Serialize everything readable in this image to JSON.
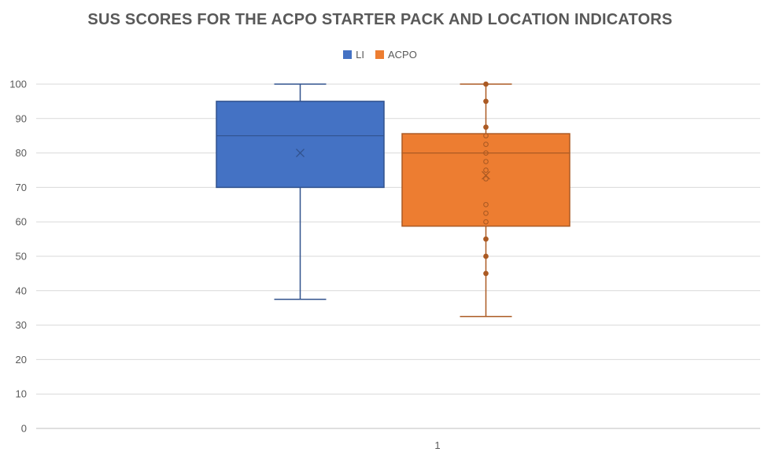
{
  "chart_data": {
    "type": "boxplot",
    "title": "SUS SCORES FOR THE ACPO STARTER PACK AND LOCATION INDICATORS",
    "categories": [
      "1"
    ],
    "ylim": [
      0,
      100
    ],
    "yticks": [
      0,
      10,
      20,
      30,
      40,
      50,
      60,
      70,
      80,
      90,
      100
    ],
    "grid": true,
    "legend_position": "top",
    "series": [
      {
        "name": "LI",
        "color": "#4472C4",
        "min": 37.5,
        "q1": 70,
        "median": 85,
        "q3": 95,
        "max": 100,
        "mean": 80,
        "points": []
      },
      {
        "name": "ACPO",
        "color": "#ED7D31",
        "min": 32.5,
        "q1": 58.75,
        "median": 80,
        "q3": 85.6,
        "max": 100,
        "mean": 73.5,
        "points": [
          100,
          95,
          87.5,
          85,
          82.5,
          80,
          77.5,
          75,
          72.5,
          65,
          62.5,
          60,
          55,
          50,
          45
        ]
      }
    ]
  }
}
